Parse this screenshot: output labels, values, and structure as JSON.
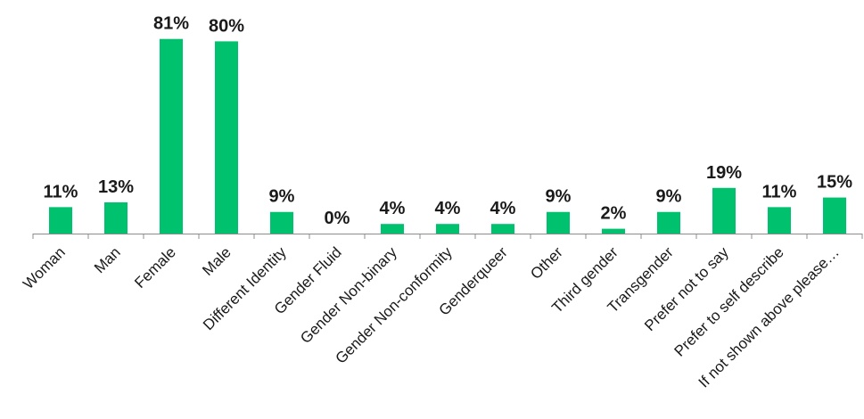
{
  "chart_data": {
    "type": "bar",
    "categories": [
      "Woman",
      "Man",
      "Female",
      "Male",
      "Different Identity",
      "Gender Fluid",
      "Gender Non-binary",
      "Gender Non-conformity",
      "Genderqueer",
      "Other",
      "Third gender",
      "Transgender",
      "Prefer not to say",
      "Prefer to self describe",
      "If not shown above please…"
    ],
    "values": [
      11,
      13,
      81,
      80,
      9,
      0,
      4,
      4,
      4,
      9,
      2,
      9,
      19,
      11,
      15
    ],
    "data_labels": [
      "11%",
      "13%",
      "81%",
      "80%",
      "9%",
      "0%",
      "4%",
      "4%",
      "4%",
      "9%",
      "2%",
      "9%",
      "19%",
      "11%",
      "15%"
    ],
    "ylim": [
      0,
      82
    ],
    "grid": false,
    "legend": "none",
    "bar_color": "#00c16e"
  }
}
